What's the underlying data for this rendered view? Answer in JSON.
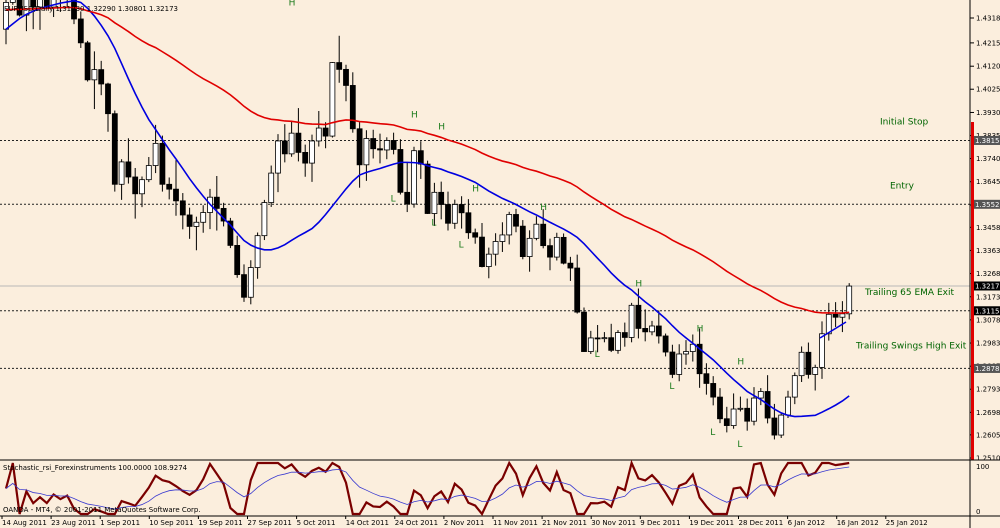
{
  "chart_data": {
    "type": "candlestick",
    "symbol_header": "EURUSD,Daily  1.31030 1.32290 1.30801 1.32173",
    "footer": "OANDA - MT4, © 2001-2011 MetaQuotes Software Corp.",
    "indicator_label": "Stochastic_rsi_Forexinstruments 100.0000 108.9274",
    "indicator_ticks": [
      "100",
      "0"
    ],
    "price_ticks": [
      "1.43180",
      "1.42158",
      "1.41200",
      "1.40255",
      "1.39300",
      "1.38350",
      "1.37408",
      "1.36455",
      "1.35500",
      "1.34583",
      "1.33633",
      "1.32683",
      "1.31730",
      "1.30783",
      "1.29830",
      "1.28878",
      "1.27933",
      "1.26983",
      "1.26058",
      "1.25108"
    ],
    "price_ylim": [
      1.25108,
      1.4318
    ],
    "date_labels": [
      "14 Aug 2011",
      "23 Aug 2011",
      "1 Sep 2011",
      "10 Sep 2011",
      "19 Sep 2011",
      "27 Sep 2011",
      "5 Oct 2011",
      "14 Oct 2011",
      "24 Oct 2011",
      "2 Nov 2011",
      "11 Nov 2011",
      "21 Nov 2011",
      "30 Nov 2011",
      "9 Dec 2011",
      "19 Dec 2011",
      "28 Dec 2011",
      "6 Jan 2012",
      "16 Jan 2012",
      "25 Jan 2012"
    ],
    "price_boxes": [
      {
        "label": "1.38150",
        "value": 1.3815,
        "color": "#555555"
      },
      {
        "label": "1.35528",
        "value": 1.35528,
        "color": "#555555"
      },
      {
        "label": "1.32173",
        "value": 1.32173,
        "color": "#000000"
      },
      {
        "label": "1.31155",
        "value": 1.31155,
        "color": "#000000"
      },
      {
        "label": "1.28787",
        "value": 1.28787,
        "color": "#555555"
      }
    ],
    "levels": [
      {
        "name": "Initial Stop",
        "value": 1.3815
      },
      {
        "name": "Entry",
        "value": 1.35528
      },
      {
        "name": "Trailing 65 EMA Exit",
        "value": 1.31155
      },
      {
        "name": "Trailing Swings High Exit",
        "value": 1.28787
      }
    ],
    "current_price": 1.32173,
    "swing_marks": [
      {
        "label": "H",
        "bar": 42,
        "value": 1.437
      },
      {
        "label": "H",
        "bar": 60,
        "value": 1.391
      },
      {
        "label": "L",
        "bar": 57,
        "value": 1.3565
      },
      {
        "label": "H",
        "bar": 64,
        "value": 1.386
      },
      {
        "label": "L",
        "bar": 63,
        "value": 1.3465
      },
      {
        "label": "H",
        "bar": 69,
        "value": 1.3605
      },
      {
        "label": "L",
        "bar": 67,
        "value": 1.3375
      },
      {
        "label": "H",
        "bar": 79,
        "value": 1.353
      },
      {
        "label": "L",
        "bar": 87,
        "value": 1.2925
      },
      {
        "label": "H",
        "bar": 93,
        "value": 1.3215
      },
      {
        "label": "L",
        "bar": 98,
        "value": 1.2795
      },
      {
        "label": "H",
        "bar": 102,
        "value": 1.303
      },
      {
        "label": "L",
        "bar": 104,
        "value": 1.2605
      },
      {
        "label": "H",
        "bar": 108,
        "value": 1.2895
      },
      {
        "label": "L",
        "bar": 108,
        "value": 1.2555
      }
    ],
    "ohlc": [
      [
        1.4272,
        1.4393,
        1.421,
        1.4382
      ],
      [
        1.4382,
        1.4443,
        1.4372,
        1.4437
      ],
      [
        1.4437,
        1.4456,
        1.4324,
        1.433
      ],
      [
        1.433,
        1.4442,
        1.4264,
        1.4434
      ],
      [
        1.4434,
        1.4447,
        1.4272,
        1.4363
      ],
      [
        1.4363,
        1.4431,
        1.4269,
        1.4403
      ],
      [
        1.4403,
        1.4429,
        1.4358,
        1.4363
      ],
      [
        1.4363,
        1.4434,
        1.4322,
        1.4425
      ],
      [
        1.4425,
        1.4495,
        1.4343,
        1.4394
      ],
      [
        1.4394,
        1.4433,
        1.4365,
        1.442
      ],
      [
        1.442,
        1.4455,
        1.4293,
        1.4314
      ],
      [
        1.4314,
        1.4345,
        1.4195,
        1.4216
      ],
      [
        1.4216,
        1.4224,
        1.4057,
        1.4064
      ],
      [
        1.4064,
        1.4181,
        1.3944,
        1.4106
      ],
      [
        1.4106,
        1.4142,
        1.4001,
        1.4047
      ],
      [
        1.4047,
        1.4052,
        1.3851,
        1.3925
      ],
      [
        1.3925,
        1.3938,
        1.3605,
        1.3635
      ],
      [
        1.3635,
        1.3738,
        1.3571,
        1.3727
      ],
      [
        1.3727,
        1.3824,
        1.3638,
        1.3665
      ],
      [
        1.3665,
        1.3702,
        1.3494,
        1.3596
      ],
      [
        1.3596,
        1.3667,
        1.3541,
        1.3654
      ],
      [
        1.3654,
        1.3747,
        1.3644,
        1.3712
      ],
      [
        1.3712,
        1.3879,
        1.3681,
        1.3803
      ],
      [
        1.3803,
        1.3835,
        1.3605,
        1.3635
      ],
      [
        1.3635,
        1.3663,
        1.3573,
        1.3615
      ],
      [
        1.3615,
        1.3734,
        1.3506,
        1.3567
      ],
      [
        1.3567,
        1.3599,
        1.345,
        1.3509
      ],
      [
        1.3509,
        1.3539,
        1.3411,
        1.3462
      ],
      [
        1.3462,
        1.3502,
        1.3364,
        1.3479
      ],
      [
        1.3479,
        1.3549,
        1.3436,
        1.3519
      ],
      [
        1.3519,
        1.3616,
        1.3451,
        1.3582
      ],
      [
        1.3582,
        1.3669,
        1.3445,
        1.3536
      ],
      [
        1.3536,
        1.3559,
        1.3462,
        1.3484
      ],
      [
        1.3484,
        1.3497,
        1.3373,
        1.3384
      ],
      [
        1.3384,
        1.3424,
        1.3251,
        1.3264
      ],
      [
        1.3264,
        1.3306,
        1.3152,
        1.3171
      ],
      [
        1.3171,
        1.3323,
        1.3142,
        1.3293
      ],
      [
        1.3293,
        1.3437,
        1.3247,
        1.3424
      ],
      [
        1.3424,
        1.3571,
        1.3406,
        1.356
      ],
      [
        1.356,
        1.3712,
        1.3542,
        1.3681
      ],
      [
        1.3681,
        1.3841,
        1.3603,
        1.3813
      ],
      [
        1.3813,
        1.3882,
        1.3725,
        1.376
      ],
      [
        1.376,
        1.3892,
        1.3748,
        1.3845
      ],
      [
        1.3845,
        1.3948,
        1.3729,
        1.3766
      ],
      [
        1.3766,
        1.3798,
        1.3666,
        1.3722
      ],
      [
        1.3722,
        1.3839,
        1.3645,
        1.3813
      ],
      [
        1.3813,
        1.3936,
        1.379,
        1.3866
      ],
      [
        1.3866,
        1.389,
        1.3783,
        1.3833
      ],
      [
        1.3833,
        1.4137,
        1.3827,
        1.4135
      ],
      [
        1.4135,
        1.4245,
        1.4052,
        1.4107
      ],
      [
        1.4107,
        1.4126,
        1.3976,
        1.4041
      ],
      [
        1.4041,
        1.4095,
        1.3847,
        1.3863
      ],
      [
        1.3863,
        1.3895,
        1.3621,
        1.3715
      ],
      [
        1.3715,
        1.3857,
        1.3649,
        1.3823
      ],
      [
        1.3823,
        1.3859,
        1.3741,
        1.3781
      ],
      [
        1.3781,
        1.3843,
        1.3721,
        1.3776
      ],
      [
        1.3776,
        1.3828,
        1.3738,
        1.3815
      ],
      [
        1.3815,
        1.3847,
        1.3758,
        1.3778
      ],
      [
        1.3778,
        1.382,
        1.3593,
        1.3602
      ],
      [
        1.3602,
        1.3725,
        1.3521,
        1.3554
      ],
      [
        1.3554,
        1.3789,
        1.3539,
        1.3773
      ],
      [
        1.3773,
        1.3812,
        1.3657,
        1.3718
      ],
      [
        1.3718,
        1.3732,
        1.3513,
        1.3515
      ],
      [
        1.3515,
        1.3641,
        1.3464,
        1.3602
      ],
      [
        1.3602,
        1.3646,
        1.3491,
        1.3552
      ],
      [
        1.3552,
        1.3605,
        1.3445,
        1.3475
      ],
      [
        1.3475,
        1.3572,
        1.3452,
        1.3552
      ],
      [
        1.3552,
        1.3586,
        1.3453,
        1.3518
      ],
      [
        1.3518,
        1.3574,
        1.3411,
        1.3436
      ],
      [
        1.3436,
        1.3453,
        1.3391,
        1.3418
      ],
      [
        1.3418,
        1.3476,
        1.3294,
        1.3297
      ],
      [
        1.3297,
        1.3375,
        1.3249,
        1.3348
      ],
      [
        1.3348,
        1.3434,
        1.3301,
        1.34
      ],
      [
        1.34,
        1.3479,
        1.3357,
        1.3427
      ],
      [
        1.3427,
        1.3522,
        1.3388,
        1.3511
      ],
      [
        1.3511,
        1.3534,
        1.3438,
        1.3463
      ],
      [
        1.3463,
        1.3488,
        1.3327,
        1.3338
      ],
      [
        1.3338,
        1.3446,
        1.3276,
        1.3413
      ],
      [
        1.3413,
        1.3504,
        1.3405,
        1.3471
      ],
      [
        1.3471,
        1.3533,
        1.3372,
        1.3383
      ],
      [
        1.3383,
        1.3412,
        1.3282,
        1.3336
      ],
      [
        1.3336,
        1.3436,
        1.3322,
        1.3417
      ],
      [
        1.3417,
        1.3433,
        1.3306,
        1.3311
      ],
      [
        1.3311,
        1.3337,
        1.3238,
        1.3291
      ],
      [
        1.3291,
        1.3346,
        1.3104,
        1.311
      ],
      [
        1.311,
        1.3129,
        1.2946,
        1.2948
      ],
      [
        1.2948,
        1.3033,
        1.2938,
        1.3004
      ],
      [
        1.3004,
        1.3057,
        1.2945,
        1.3001
      ],
      [
        1.3001,
        1.3028,
        1.2986,
        1.3005
      ],
      [
        1.3005,
        1.3062,
        1.2946,
        1.2953
      ],
      [
        1.2953,
        1.3036,
        1.2939,
        1.3026
      ],
      [
        1.3026,
        1.3067,
        1.2968,
        1.3006
      ],
      [
        1.3006,
        1.3148,
        1.2986,
        1.3138
      ],
      [
        1.3138,
        1.3207,
        1.3002,
        1.3043
      ],
      [
        1.3043,
        1.3121,
        1.299,
        1.3029
      ],
      [
        1.3029,
        1.3074,
        1.3015,
        1.3053
      ],
      [
        1.3053,
        1.3117,
        1.2981,
        1.3012
      ],
      [
        1.3012,
        1.3022,
        1.2928,
        1.2946
      ],
      [
        1.2946,
        1.2976,
        1.2839,
        1.2854
      ],
      [
        1.2854,
        1.2978,
        1.2826,
        1.2938
      ],
      [
        1.2938,
        1.2995,
        1.2894,
        1.2948
      ],
      [
        1.2948,
        1.3018,
        1.2907,
        1.2978
      ],
      [
        1.2978,
        1.3043,
        1.2799,
        1.2857
      ],
      [
        1.2857,
        1.29,
        1.2771,
        1.2817
      ],
      [
        1.2817,
        1.2847,
        1.2727,
        1.2761
      ],
      [
        1.2761,
        1.2798,
        1.2654,
        1.2672
      ],
      [
        1.2672,
        1.2721,
        1.2616,
        1.2644
      ],
      [
        1.2644,
        1.2776,
        1.2631,
        1.2712
      ],
      [
        1.2712,
        1.2763,
        1.2702,
        1.2715
      ],
      [
        1.2715,
        1.2755,
        1.2623,
        1.2662
      ],
      [
        1.2662,
        1.2802,
        1.2645,
        1.2757
      ],
      [
        1.2757,
        1.2798,
        1.2728,
        1.2784
      ],
      [
        1.2784,
        1.2851,
        1.2653,
        1.2675
      ],
      [
        1.2675,
        1.2733,
        1.2587,
        1.2605
      ],
      [
        1.2605,
        1.2693,
        1.2593,
        1.2687
      ],
      [
        1.2687,
        1.2787,
        1.2675,
        1.2761
      ],
      [
        1.2761,
        1.2862,
        1.2732,
        1.2849
      ],
      [
        1.2849,
        1.2969,
        1.2823,
        1.2945
      ],
      [
        1.2945,
        1.2985,
        1.2837,
        1.2854
      ],
      [
        1.2854,
        1.2894,
        1.2788,
        1.2883
      ],
      [
        1.2883,
        1.3072,
        1.2836,
        1.3021
      ],
      [
        1.3021,
        1.3148,
        1.2993,
        1.3101
      ],
      [
        1.3101,
        1.3151,
        1.3049,
        1.3089
      ],
      [
        1.3089,
        1.3155,
        1.3028,
        1.3103
      ],
      [
        1.3103,
        1.3229,
        1.308,
        1.3217
      ]
    ],
    "ema_blue": [
      1.4272,
      1.4294,
      1.4316,
      1.4333,
      1.4346,
      1.4357,
      1.4365,
      1.4372,
      1.4379,
      1.4384,
      1.4389,
      1.4382,
      1.4358,
      1.4326,
      1.4288,
      1.4245,
      1.4193,
      1.4131,
      1.4068,
      1.4008,
      1.3952,
      1.3901,
      1.386,
      1.3818,
      1.3777,
      1.3739,
      1.3699,
      1.3658,
      1.3621,
      1.3586,
      1.3553,
      1.3524,
      1.3496,
      1.3467,
      1.3435,
      1.3404,
      1.3385,
      1.3373,
      1.3366,
      1.3366,
      1.3374,
      1.3387,
      1.3405,
      1.3422,
      1.3437,
      1.3453,
      1.3479,
      1.3511,
      1.3546,
      1.3581,
      1.3616,
      1.3648,
      1.3673,
      1.3684,
      1.3692,
      1.37,
      1.3709,
      1.3718,
      1.3725,
      1.3725,
      1.3724,
      1.3721,
      1.3711,
      1.3704,
      1.3697,
      1.3686,
      1.3677,
      1.3667,
      1.3655,
      1.3643,
      1.3625,
      1.3607,
      1.3592,
      1.3577,
      1.3565,
      1.3552,
      1.3537,
      1.3522,
      1.3509,
      1.3494,
      1.3479,
      1.3465,
      1.3451,
      1.3435,
      1.3417,
      1.3391,
      1.3361,
      1.3331,
      1.3302,
      1.3271,
      1.3244,
      1.322,
      1.3201,
      1.3176,
      1.3152,
      1.3131,
      1.3107,
      1.3083,
      1.3054,
      1.3027,
      1.3004,
      1.2982,
      1.2959,
      1.2937,
      1.2914,
      1.2887,
      1.2859,
      1.2833,
      1.2809,
      1.2784,
      1.2767,
      1.2751,
      1.2731,
      1.2712,
      1.2696,
      1.2686,
      1.2681,
      1.2682,
      1.2684,
      1.2686,
      1.2699,
      1.2713,
      1.2728,
      1.2745,
      1.2766
    ]
  }
}
